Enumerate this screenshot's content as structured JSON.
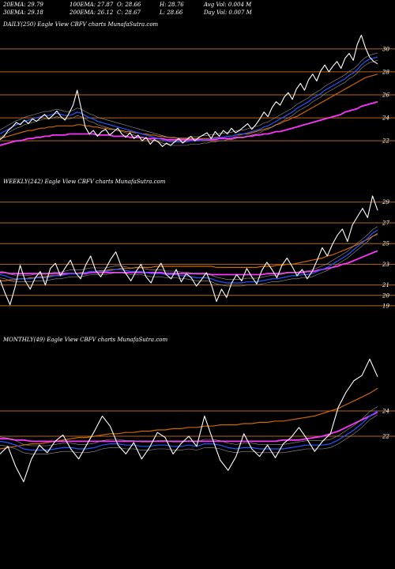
{
  "stats": {
    "row1": [
      "20EMA: 29.79",
      "100EMA: 27.87",
      "O: 28.66",
      "H: 28.76",
      "Avg Vol: 0.004  M"
    ],
    "row2": [
      "30EMA: 29.18",
      "200EMA: 26.12",
      "C: 28.67",
      "L: 28.66",
      "Day Vol: 0.007  M"
    ]
  },
  "chart_data": [
    {
      "type": "line",
      "title": "DAILY(250) Eagle   View  CBFV charts MunafaSutra.com",
      "y_ticks": [
        "30",
        "28",
        "26",
        "24",
        "22"
      ],
      "ylim": [
        20.5,
        31.5
      ],
      "series": [
        {
          "color": "#ffffff",
          "values": [
            22.1,
            22.4,
            22.9,
            23.2,
            23.6,
            23.4,
            23.8,
            23.5,
            23.9,
            23.7,
            24.0,
            24.3,
            23.9,
            24.2,
            24.6,
            24.1,
            23.8,
            24.4,
            25.1,
            26.4,
            24.8,
            23.2,
            22.6,
            22.9,
            22.4,
            22.8,
            23.0,
            22.5,
            22.8,
            23.1,
            22.6,
            22.3,
            22.7,
            22.2,
            22.5,
            22.0,
            22.3,
            21.7,
            22.1,
            21.9,
            21.5,
            21.8,
            21.6,
            21.9,
            22.2,
            21.8,
            22.1,
            22.4,
            22.0,
            22.3,
            22.5,
            22.7,
            22.2,
            22.8,
            22.4,
            22.9,
            22.6,
            23.1,
            22.7,
            22.9,
            23.2,
            23.5,
            23.0,
            23.4,
            23.9,
            24.5,
            24.1,
            24.9,
            25.4,
            25.1,
            25.8,
            26.2,
            25.6,
            26.5,
            27.0,
            26.4,
            27.3,
            27.8,
            27.2,
            28.1,
            28.6,
            28.0,
            28.5,
            28.9,
            28.3,
            29.2,
            29.6,
            29.0,
            30.4,
            31.2,
            30.1,
            29.3,
            28.9,
            28.7
          ]
        },
        {
          "color": "#2255ff",
          "values": [
            22.6,
            22.8,
            23.0,
            23.2,
            23.4,
            23.5,
            23.7,
            23.8,
            23.9,
            24.0,
            24.1,
            24.2,
            24.2,
            24.3,
            24.4,
            24.3,
            24.2,
            24.2,
            24.3,
            24.5,
            24.4,
            24.2,
            24.0,
            23.9,
            23.7,
            23.6,
            23.5,
            23.4,
            23.3,
            23.2,
            23.1,
            23.0,
            22.9,
            22.8,
            22.7,
            22.6,
            22.5,
            22.4,
            22.3,
            22.2,
            22.1,
            22.0,
            21.9,
            21.9,
            21.9,
            21.9,
            21.9,
            22.0,
            22.0,
            22.0,
            22.1,
            22.1,
            22.2,
            22.2,
            22.3,
            22.3,
            22.4,
            22.4,
            22.5,
            22.6,
            22.6,
            22.7,
            22.8,
            22.9,
            23.0,
            23.2,
            23.3,
            23.5,
            23.7,
            23.9,
            24.1,
            24.3,
            24.5,
            24.8,
            25.0,
            25.2,
            25.4,
            25.7,
            25.9,
            26.1,
            26.4,
            26.6,
            26.8,
            27.0,
            27.2,
            27.4,
            27.7,
            27.9,
            28.2,
            28.6,
            28.9,
            29.1,
            29.2,
            29.3
          ]
        },
        {
          "color": "#ff33ff",
          "values": [
            21.6,
            21.7,
            21.8,
            21.9,
            22.0,
            22.0,
            22.1,
            22.2,
            22.2,
            22.3,
            22.3,
            22.4,
            22.4,
            22.5,
            22.5,
            22.5,
            22.5,
            22.6,
            22.6,
            22.6,
            22.6,
            22.6,
            22.6,
            22.6,
            22.5,
            22.5,
            22.5,
            22.5,
            22.4,
            22.4,
            22.4,
            22.4,
            22.3,
            22.3,
            22.3,
            22.3,
            22.2,
            22.2,
            22.2,
            22.2,
            22.2,
            22.1,
            22.1,
            22.1,
            22.1,
            22.1,
            22.1,
            22.1,
            22.1,
            22.1,
            22.1,
            22.1,
            22.1,
            22.1,
            22.2,
            22.2,
            22.2,
            22.2,
            22.3,
            22.3,
            22.3,
            22.4,
            22.4,
            22.5,
            22.5,
            22.6,
            22.6,
            22.7,
            22.8,
            22.8,
            22.9,
            23.0,
            23.1,
            23.2,
            23.3,
            23.4,
            23.5,
            23.6,
            23.7,
            23.8,
            23.9,
            24.0,
            24.1,
            24.2,
            24.3,
            24.5,
            24.6,
            24.7,
            24.8,
            25.0,
            25.1,
            25.2,
            25.3,
            25.4
          ]
        },
        {
          "color": "#cc6600",
          "values": [
            22.2,
            22.3,
            22.4,
            22.5,
            22.6,
            22.7,
            22.8,
            22.9,
            22.9,
            23.0,
            23.1,
            23.1,
            23.2,
            23.2,
            23.3,
            23.3,
            23.3,
            23.3,
            23.3,
            23.4,
            23.4,
            23.3,
            23.3,
            23.2,
            23.2,
            23.1,
            23.1,
            23.0,
            23.0,
            22.9,
            22.9,
            22.8,
            22.8,
            22.7,
            22.7,
            22.6,
            22.6,
            22.5,
            22.5,
            22.4,
            22.4,
            22.3,
            22.3,
            22.3,
            22.2,
            22.2,
            22.2,
            22.2,
            22.2,
            22.2,
            22.2,
            22.2,
            22.2,
            22.3,
            22.3,
            22.3,
            22.4,
            22.4,
            22.5,
            22.5,
            22.6,
            22.6,
            22.7,
            22.8,
            22.9,
            23.0,
            23.1,
            23.2,
            23.4,
            23.5,
            23.7,
            23.8,
            24.0,
            24.1,
            24.3,
            24.5,
            24.7,
            24.9,
            25.1,
            25.3,
            25.5,
            25.7,
            25.9,
            26.1,
            26.3,
            26.5,
            26.7,
            26.9,
            27.1,
            27.3,
            27.5,
            27.6,
            27.7,
            27.8
          ]
        }
      ]
    },
    {
      "type": "line",
      "title": "WEEKLY(242) Eagle   View  CBFV charts MunafaSutra.com",
      "y_ticks": [
        "29",
        "27",
        "25",
        "23",
        "21",
        "20",
        "19"
      ],
      "ylim": [
        18.0,
        30.2
      ],
      "series": [
        {
          "color": "#ffffff",
          "values": [
            21.5,
            20.2,
            19.1,
            20.8,
            22.9,
            21.4,
            20.6,
            21.7,
            22.3,
            21.0,
            22.6,
            23.1,
            21.9,
            22.7,
            23.4,
            22.2,
            21.6,
            22.9,
            23.8,
            22.4,
            21.8,
            22.6,
            23.5,
            24.2,
            22.9,
            22.1,
            21.4,
            22.3,
            23.0,
            21.8,
            21.2,
            22.4,
            23.1,
            22.0,
            21.6,
            22.5,
            21.3,
            22.1,
            21.7,
            20.9,
            21.5,
            22.2,
            21.0,
            19.4,
            20.6,
            19.8,
            21.2,
            22.0,
            21.4,
            22.6,
            21.8,
            21.1,
            22.4,
            23.2,
            22.5,
            21.7,
            22.9,
            23.6,
            22.8,
            21.9,
            22.5,
            21.6,
            22.3,
            23.4,
            24.6,
            23.8,
            24.9,
            25.8,
            26.4,
            25.2,
            26.8,
            27.6,
            28.4,
            27.5,
            29.6,
            28.2
          ]
        },
        {
          "color": "#2255ff",
          "values": [
            22.0,
            21.9,
            21.7,
            21.6,
            21.6,
            21.6,
            21.6,
            21.7,
            21.7,
            21.7,
            21.8,
            21.9,
            21.9,
            22.0,
            22.1,
            22.1,
            22.1,
            22.2,
            22.3,
            22.3,
            22.3,
            22.3,
            22.4,
            22.5,
            22.5,
            22.4,
            22.3,
            22.3,
            22.3,
            22.2,
            22.1,
            22.1,
            22.1,
            22.0,
            22.0,
            22.0,
            21.9,
            21.9,
            21.8,
            21.7,
            21.7,
            21.7,
            21.6,
            21.4,
            21.3,
            21.2,
            21.2,
            21.2,
            21.2,
            21.3,
            21.3,
            21.3,
            21.4,
            21.5,
            21.6,
            21.6,
            21.7,
            21.8,
            21.9,
            21.9,
            22.0,
            22.0,
            22.1,
            22.3,
            22.5,
            22.7,
            23.0,
            23.3,
            23.6,
            23.9,
            24.3,
            24.7,
            25.1,
            25.5,
            26.0,
            26.3
          ]
        },
        {
          "color": "#ff33ff",
          "values": [
            22.2,
            22.2,
            22.1,
            22.1,
            22.1,
            22.1,
            22.1,
            22.1,
            22.1,
            22.1,
            22.1,
            22.1,
            22.1,
            22.1,
            22.1,
            22.1,
            22.1,
            22.1,
            22.2,
            22.2,
            22.2,
            22.2,
            22.2,
            22.2,
            22.2,
            22.2,
            22.2,
            22.2,
            22.2,
            22.2,
            22.2,
            22.2,
            22.2,
            22.1,
            22.1,
            22.1,
            22.1,
            22.1,
            22.1,
            22.1,
            22.1,
            22.1,
            22.0,
            22.0,
            22.0,
            22.0,
            22.0,
            22.0,
            22.0,
            22.0,
            22.0,
            22.0,
            22.0,
            22.1,
            22.1,
            22.1,
            22.1,
            22.2,
            22.2,
            22.2,
            22.2,
            22.3,
            22.3,
            22.4,
            22.5,
            22.6,
            22.7,
            22.8,
            23.0,
            23.1,
            23.3,
            23.5,
            23.7,
            23.9,
            24.1,
            24.3
          ]
        },
        {
          "color": "#cc6600",
          "values": [
            21.4,
            21.4,
            21.5,
            21.5,
            21.6,
            21.6,
            21.7,
            21.7,
            21.8,
            21.8,
            21.9,
            21.9,
            22.0,
            22.0,
            22.1,
            22.1,
            22.2,
            22.2,
            22.3,
            22.3,
            22.4,
            22.4,
            22.5,
            22.5,
            22.6,
            22.6,
            22.6,
            22.7,
            22.7,
            22.7,
            22.7,
            22.8,
            22.8,
            22.8,
            22.8,
            22.8,
            22.8,
            22.8,
            22.8,
            22.8,
            22.8,
            22.8,
            22.8,
            22.7,
            22.7,
            22.7,
            22.7,
            22.7,
            22.7,
            22.7,
            22.7,
            22.7,
            22.8,
            22.8,
            22.8,
            22.9,
            22.9,
            23.0,
            23.0,
            23.1,
            23.2,
            23.3,
            23.4,
            23.5,
            23.6,
            23.8,
            23.9,
            24.1,
            24.3,
            24.5,
            24.7,
            24.9,
            25.2,
            25.4,
            25.7,
            25.9
          ]
        }
      ]
    },
    {
      "type": "line",
      "title": "MONTHLY(49) Eagle   View  CBFV charts MunafaSutra.com",
      "y_ticks": [
        "24",
        "22"
      ],
      "ylim": [
        16.5,
        29.0
      ],
      "series": [
        {
          "color": "#ffffff",
          "values": [
            20.6,
            21.2,
            19.6,
            18.4,
            20.2,
            21.3,
            20.7,
            21.6,
            22.1,
            21.0,
            20.2,
            21.3,
            22.4,
            23.6,
            22.8,
            21.3,
            20.6,
            21.5,
            20.2,
            21.1,
            22.3,
            21.9,
            20.6,
            21.4,
            22.0,
            21.2,
            23.6,
            21.8,
            20.1,
            19.3,
            20.4,
            22.2,
            21.0,
            20.4,
            21.3,
            20.3,
            21.4,
            21.9,
            22.7,
            21.8,
            20.8,
            21.6,
            22.2,
            24.3,
            25.5,
            26.4,
            26.8,
            28.1,
            26.7
          ]
        },
        {
          "color": "#2255ff",
          "values": [
            21.6,
            21.5,
            21.3,
            21.0,
            20.9,
            20.9,
            20.9,
            21.0,
            21.1,
            21.1,
            21.0,
            21.0,
            21.1,
            21.3,
            21.4,
            21.4,
            21.3,
            21.3,
            21.2,
            21.2,
            21.3,
            21.3,
            21.2,
            21.2,
            21.3,
            21.2,
            21.4,
            21.4,
            21.3,
            21.1,
            21.0,
            21.1,
            21.1,
            21.0,
            21.0,
            21.0,
            21.0,
            21.1,
            21.2,
            21.3,
            21.3,
            21.3,
            21.4,
            21.7,
            22.1,
            22.5,
            23.0,
            23.6,
            24.0
          ]
        },
        {
          "color": "#ff33ff",
          "values": [
            21.8,
            21.8,
            21.7,
            21.7,
            21.6,
            21.6,
            21.6,
            21.6,
            21.6,
            21.6,
            21.6,
            21.6,
            21.6,
            21.6,
            21.6,
            21.6,
            21.6,
            21.6,
            21.6,
            21.6,
            21.6,
            21.6,
            21.6,
            21.6,
            21.6,
            21.6,
            21.6,
            21.6,
            21.6,
            21.6,
            21.6,
            21.6,
            21.6,
            21.6,
            21.6,
            21.6,
            21.7,
            21.7,
            21.7,
            21.8,
            21.9,
            22.0,
            22.2,
            22.4,
            22.7,
            23.0,
            23.3,
            23.6,
            23.9
          ]
        },
        {
          "color": "#cc6600",
          "values": [
            21.0,
            21.1,
            21.2,
            21.3,
            21.4,
            21.4,
            21.5,
            21.6,
            21.7,
            21.8,
            21.9,
            21.9,
            22.0,
            22.1,
            22.2,
            22.2,
            22.3,
            22.3,
            22.4,
            22.4,
            22.5,
            22.5,
            22.6,
            22.6,
            22.7,
            22.7,
            22.8,
            22.8,
            22.9,
            22.9,
            22.9,
            23.0,
            23.0,
            23.1,
            23.1,
            23.2,
            23.2,
            23.3,
            23.4,
            23.5,
            23.6,
            23.8,
            24.0,
            24.2,
            24.5,
            24.8,
            25.1,
            25.4,
            25.8
          ]
        }
      ]
    }
  ]
}
